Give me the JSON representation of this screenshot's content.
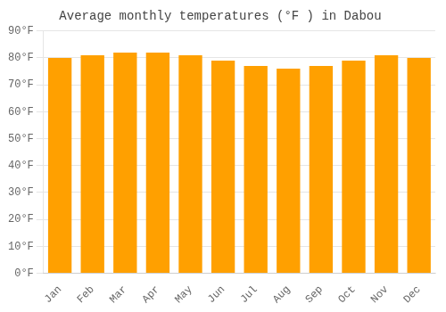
{
  "chart_data": {
    "type": "bar",
    "title": "Average monthly temperatures (°F ) in Dabou",
    "categories": [
      "Jan",
      "Feb",
      "Mar",
      "Apr",
      "May",
      "Jun",
      "Jul",
      "Aug",
      "Sep",
      "Oct",
      "Nov",
      "Dec"
    ],
    "values": [
      80,
      81,
      82,
      82,
      81,
      79,
      77,
      76,
      77,
      79,
      81,
      80
    ],
    "color": "#FFA000",
    "ylim": [
      0,
      90
    ],
    "yticks": [
      {
        "value": 0,
        "label": "0°F"
      },
      {
        "value": 10,
        "label": "10°F"
      },
      {
        "value": 20,
        "label": "20°F"
      },
      {
        "value": 30,
        "label": "30°F"
      },
      {
        "value": 40,
        "label": "40°F"
      },
      {
        "value": 50,
        "label": "50°F"
      },
      {
        "value": 60,
        "label": "60°F"
      },
      {
        "value": 70,
        "label": "70°F"
      },
      {
        "value": 80,
        "label": "80°F"
      },
      {
        "value": 90,
        "label": "90°F"
      }
    ],
    "grid": true
  }
}
